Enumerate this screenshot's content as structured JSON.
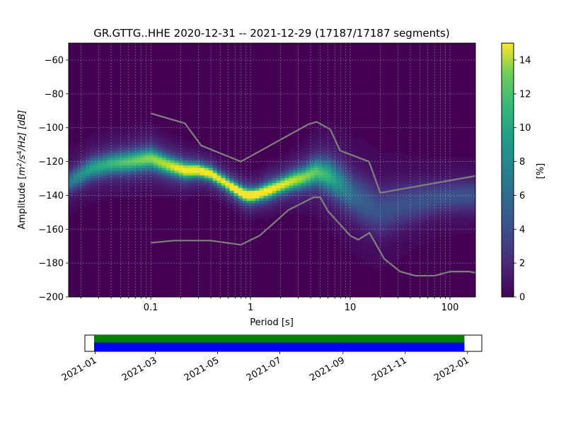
{
  "chart_data": {
    "type": "heatmap",
    "title": "GR.GTTG..HHE   2020-12-31 -- 2021-12-29  (17187/17187 segments)",
    "xlabel": "Period [s]",
    "ylabel": "Amplitude [m²/s⁴/Hz] [dB]",
    "ylabel_parts": {
      "prefix": "Amplitude [",
      "base1": "m",
      "sup1": "2",
      "mid": "/s",
      "sup2": "4",
      "suffix": "/Hz] [dB]"
    },
    "x_scale": "log",
    "xlim": [
      0.015,
      180
    ],
    "ylim": [
      -200,
      -50
    ],
    "x_ticks": [
      0.1,
      1,
      10,
      100
    ],
    "x_tick_labels": [
      "0.1",
      "1",
      "10",
      "100"
    ],
    "y_ticks": [
      -200,
      -180,
      -160,
      -140,
      -120,
      -100,
      -80,
      -60
    ],
    "y_tick_labels": [
      "−200",
      "−180",
      "−160",
      "−140",
      "−120",
      "−100",
      "−80",
      "−60"
    ],
    "grid": true,
    "colormap": "viridis",
    "colorbar": {
      "label": "[%]",
      "range": [
        0,
        15
      ],
      "ticks": [
        0,
        2,
        4,
        6,
        8,
        10,
        12,
        14
      ],
      "tick_labels": [
        "0",
        "2",
        "4",
        "6",
        "8",
        "10",
        "12",
        "14"
      ]
    },
    "density_ridge": {
      "period": [
        0.015,
        0.025,
        0.04,
        0.06,
        0.1,
        0.15,
        0.22,
        0.3,
        0.4,
        0.55,
        0.7,
        0.85,
        1.0,
        1.2,
        1.5,
        2.0,
        2.7,
        3.5,
        4.5,
        6.0,
        8.0,
        11,
        15,
        20,
        30,
        50,
        80,
        120,
        180
      ],
      "amplitude_db": [
        -132,
        -124,
        -121,
        -120,
        -118,
        -122,
        -125,
        -125,
        -127,
        -132,
        -136,
        -139,
        -140,
        -139,
        -137,
        -134,
        -131,
        -129,
        -126,
        -128,
        -133,
        -140,
        -145,
        -149,
        -146,
        -143,
        -141,
        -140,
        -140
      ],
      "percent": [
        5,
        7,
        8,
        9,
        10,
        11,
        13,
        14,
        13,
        12,
        14,
        15,
        15,
        14,
        13,
        12,
        11,
        10,
        9,
        8,
        6,
        4,
        3.5,
        3,
        3,
        3,
        3,
        3,
        3
      ],
      "spread_db": [
        4,
        4,
        4,
        4,
        4,
        3.5,
        3,
        2.5,
        2.5,
        2.5,
        2.5,
        2.5,
        2.5,
        2.5,
        3,
        3,
        3.5,
        4,
        5,
        6,
        7,
        8,
        9,
        9,
        8,
        7,
        6,
        6,
        6
      ]
    },
    "noise_models": [
      {
        "model": "high",
        "period": [
          0.1,
          0.22,
          0.32,
          0.8,
          3.8,
          4.6,
          6.3,
          7.9,
          15.4,
          20,
          180
        ],
        "amplitude_db": [
          -91.5,
          -97.4,
          -110.5,
          -120,
          -98,
          -96.5,
          -101,
          -113.5,
          -120,
          -138.5,
          -128.5
        ]
      },
      {
        "model": "low",
        "period": [
          0.1,
          0.17,
          0.4,
          0.8,
          1.24,
          2.4,
          4.3,
          5,
          6,
          10,
          12,
          15.6,
          21.9,
          31.6,
          45,
          70,
          101,
          154,
          180
        ],
        "amplitude_db": [
          -168,
          -166.7,
          -166.7,
          -169.2,
          -163.7,
          -148.6,
          -141.1,
          -141.1,
          -149.4,
          -163.8,
          -166.2,
          -162.1,
          -177.5,
          -185,
          -187.5,
          -187.5,
          -185,
          -185,
          -185.7
        ]
      }
    ],
    "timeline": {
      "labels": [
        "2021-01",
        "2021-03",
        "2021-05",
        "2021-07",
        "2021-09",
        "2021-11",
        "2022-01"
      ],
      "bars": [
        {
          "color": "#008000",
          "start": "2020-12-31",
          "end": "2021-12-29"
        },
        {
          "color": "#0000ff",
          "start": "2020-12-31",
          "end": "2021-12-29"
        }
      ]
    },
    "colors": {
      "noise_model": "#808080",
      "grid": "#b0b0b0",
      "background": "#440154"
    }
  }
}
